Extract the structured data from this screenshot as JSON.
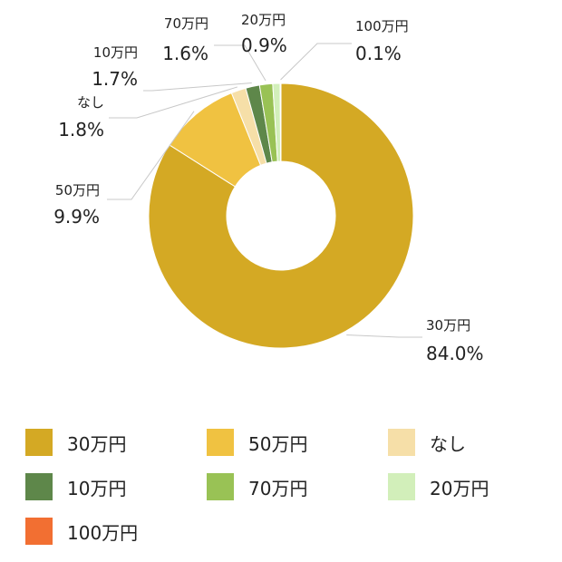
{
  "chart_data": {
    "type": "donut",
    "categories": [
      "30万円",
      "50万円",
      "なし",
      "10万円",
      "70万円",
      "20万円",
      "100万円"
    ],
    "values": [
      84.0,
      9.9,
      1.8,
      1.7,
      1.6,
      0.9,
      0.1
    ],
    "value_labels": [
      "84.0%",
      "9.9%",
      "1.8%",
      "1.7%",
      "1.6%",
      "0.9%",
      "0.1%"
    ],
    "colors": [
      "#d4a924",
      "#f0c241",
      "#f6dfa8",
      "#5e874a",
      "#99c255",
      "#d2efba",
      "#f26f32"
    ],
    "legend_placement": "bottom"
  }
}
